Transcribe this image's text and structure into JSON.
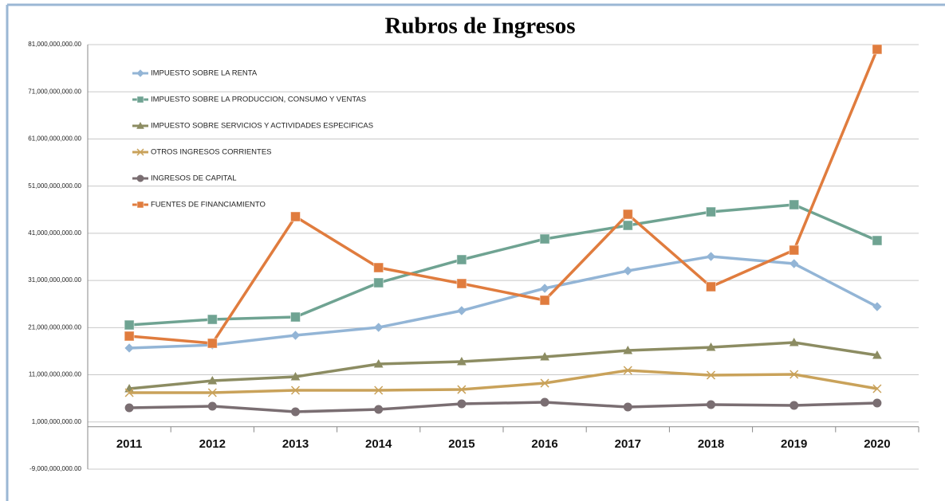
{
  "chart_data": {
    "type": "line",
    "title": "Rubros de Ingresos",
    "categories": [
      "2011",
      "2012",
      "2013",
      "2014",
      "2015",
      "2016",
      "2017",
      "2018",
      "2019",
      "2020"
    ],
    "ylim": [
      -9000000000,
      81000000000
    ],
    "yticks": [
      {
        "value": 81000000000,
        "label": "81,000,000,000.00"
      },
      {
        "value": 71000000000,
        "label": "71,000,000,000.00"
      },
      {
        "value": 61000000000,
        "label": "61,000,000,000.00"
      },
      {
        "value": 51000000000,
        "label": "51,000,000,000.00"
      },
      {
        "value": 41000000000,
        "label": "41,000,000,000.00"
      },
      {
        "value": 31000000000,
        "label": "31,000,000,000.00"
      },
      {
        "value": 21000000000,
        "label": "21,000,000,000.00"
      },
      {
        "value": 11000000000,
        "label": "11,000,000,000.00"
      },
      {
        "value": 1000000000,
        "label": "1,000,000,000.00"
      },
      {
        "value": -9000000000,
        "label": "-9,000,000,000.00"
      }
    ],
    "grid": true,
    "legend": "upper left",
    "series": [
      {
        "name": "IMPUESTO SOBRE LA RENTA",
        "color": "#93b5d6",
        "marker": "diamond",
        "values": [
          16670000000,
          17340000000,
          19370000000,
          21050000000,
          24600000000,
          29330000000,
          33040000000,
          36080000000,
          34560000000,
          25440000000
        ]
      },
      {
        "name": "IMPUESTO SOBRE LA PRODUCCION, CONSUMO Y VENTAS",
        "color": "#6fa392",
        "marker": "square",
        "values": [
          21560000000,
          22740000000,
          23250000000,
          30510000000,
          35410000000,
          39800000000,
          42670000000,
          45540000000,
          47060000000,
          39460000000
        ]
      },
      {
        "name": "IMPUESTO SOBRE SERVICIOS Y ACTIVIDADES ESPECIFICAS",
        "color": "#8c8c62",
        "marker": "triangle",
        "values": [
          8050000000,
          9740000000,
          10590000000,
          13290000000,
          13790000000,
          14810000000,
          16160000000,
          16830000000,
          17850000000,
          15140000000
        ]
      },
      {
        "name": "OTROS INGRESOS CORRIENTES",
        "color": "#c9a25a",
        "marker": "x",
        "values": [
          7210000000,
          7210000000,
          7720000000,
          7720000000,
          7880000000,
          9230000000,
          11940000000,
          10920000000,
          11090000000,
          8050000000
        ]
      },
      {
        "name": "INGRESOS DE CAPITAL",
        "color": "#7a6e72",
        "marker": "circle",
        "values": [
          4000000000,
          4340000000,
          3160000000,
          3660000000,
          4840000000,
          5180000000,
          4170000000,
          4680000000,
          4510000000,
          5010000000
        ]
      },
      {
        "name": "FUENTES DE FINANCIAMIENTO",
        "color": "#e07c3e",
        "marker": "square",
        "values": [
          19200000000,
          17680000000,
          44530000000,
          33720000000,
          30340000000,
          26800000000,
          45030000000,
          29670000000,
          37430000000,
          80000000000
        ]
      }
    ]
  }
}
